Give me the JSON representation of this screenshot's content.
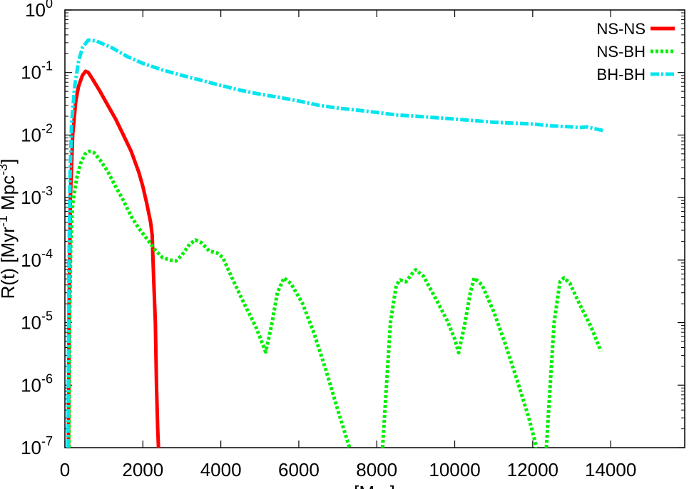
{
  "chart_data": {
    "type": "line",
    "title": "",
    "xlabel": "[Myr]",
    "ylabel": "R(t) [Myr-1 Mpc-3]",
    "ylabel_parts": {
      "base": "R(t) [Myr",
      "sup1": "-1",
      "mid": " Mpc",
      "sup2": "-3",
      "end": "]"
    },
    "x_scale": "linear",
    "y_scale": "log",
    "xlim": [
      0,
      15900
    ],
    "ylim": [
      1e-07,
      1
    ],
    "x_ticks": [
      0,
      2000,
      4000,
      6000,
      8000,
      10000,
      12000,
      14000
    ],
    "x_tick_labels": [
      "0",
      "2000",
      "4000",
      "6000",
      "8000",
      "10000",
      "12000",
      "14000"
    ],
    "y_ticks": [
      1e-07,
      1e-06,
      1e-05,
      0.0001,
      0.001,
      0.01,
      0.1,
      1
    ],
    "y_tick_labels": [
      {
        "base": "10",
        "exp": "-7"
      },
      {
        "base": "10",
        "exp": "-6"
      },
      {
        "base": "10",
        "exp": "-5"
      },
      {
        "base": "10",
        "exp": "-4"
      },
      {
        "base": "10",
        "exp": "-3"
      },
      {
        "base": "10",
        "exp": "-2"
      },
      {
        "base": "10",
        "exp": "-1"
      },
      {
        "base": "10",
        "exp": "0"
      }
    ],
    "grid": false,
    "legend_position": "top-right",
    "series": [
      {
        "name": "NS-NS",
        "color": "#ff0000",
        "dash": "solid",
        "points": [
          [
            90,
            1e-07
          ],
          [
            110,
            2e-05
          ],
          [
            140,
            0.001
          ],
          [
            200,
            0.01
          ],
          [
            280,
            0.035
          ],
          [
            350,
            0.06
          ],
          [
            450,
            0.09
          ],
          [
            530,
            0.105
          ],
          [
            600,
            0.1
          ],
          [
            700,
            0.08
          ],
          [
            900,
            0.05
          ],
          [
            1100,
            0.03
          ],
          [
            1300,
            0.018
          ],
          [
            1500,
            0.01
          ],
          [
            1700,
            0.0055
          ],
          [
            1900,
            0.0025
          ],
          [
            2000,
            0.0015
          ],
          [
            2100,
            0.0008
          ],
          [
            2200,
            0.0004
          ],
          [
            2240,
            0.00025
          ],
          [
            2260,
            0.0001
          ],
          [
            2290,
            3e-05
          ],
          [
            2320,
            1e-05
          ],
          [
            2350,
            1e-06
          ],
          [
            2380,
            2e-07
          ],
          [
            2400,
            1e-07
          ]
        ]
      },
      {
        "name": "NS-BH",
        "color": "#00ee00",
        "dash": "dotted",
        "segments": [
          [
            [
              100,
              1e-07
            ],
            [
              120,
              1e-05
            ],
            [
              150,
              0.0002
            ],
            [
              200,
              0.0008
            ],
            [
              300,
              0.002
            ],
            [
              400,
              0.0035
            ],
            [
              520,
              0.005
            ],
            [
              620,
              0.0055
            ],
            [
              750,
              0.0052
            ],
            [
              900,
              0.004
            ],
            [
              1100,
              0.0026
            ],
            [
              1300,
              0.0015
            ],
            [
              1500,
              0.0009
            ],
            [
              1700,
              0.0005
            ],
            [
              1900,
              0.00032
            ],
            [
              2100,
              0.00022
            ],
            [
              2300,
              0.00015
            ],
            [
              2500,
              0.00011
            ],
            [
              2700,
              0.0001
            ],
            [
              2850,
              9.7e-05
            ],
            [
              3000,
              0.00012
            ],
            [
              3200,
              0.00018
            ],
            [
              3350,
              0.00021
            ],
            [
              3500,
              0.00019
            ],
            [
              3700,
              0.00014
            ],
            [
              3900,
              0.00013
            ],
            [
              4050,
              0.00011
            ],
            [
              4300,
              5e-05
            ],
            [
              4600,
              2e-05
            ],
            [
              4900,
              8.5e-06
            ],
            [
              5150,
              3.4e-06
            ],
            [
              5300,
              9e-06
            ],
            [
              5450,
              3e-05
            ],
            [
              5620,
              5.2e-05
            ],
            [
              5800,
              4.2e-05
            ],
            [
              6100,
              2e-05
            ],
            [
              6400,
              6.5e-06
            ],
            [
              6700,
              1.7e-06
            ],
            [
              7000,
              4e-07
            ],
            [
              7200,
              1.6e-07
            ],
            [
              7300,
              1e-07
            ]
          ],
          [
            [
              8150,
              1e-07
            ],
            [
              8250,
              1e-06
            ],
            [
              8350,
              1e-05
            ],
            [
              8500,
              4e-05
            ],
            [
              8600,
              4.8e-05
            ],
            [
              8750,
              4.5e-05
            ],
            [
              8900,
              6e-05
            ],
            [
              9000,
              7e-05
            ],
            [
              9200,
              5.5e-05
            ],
            [
              9500,
              2.5e-05
            ],
            [
              9800,
              1.1e-05
            ],
            [
              10000,
              5.5e-06
            ],
            [
              10100,
              3.3e-06
            ],
            [
              10250,
              9e-06
            ],
            [
              10400,
              3e-05
            ],
            [
              10500,
              5.2e-05
            ],
            [
              10700,
              4e-05
            ],
            [
              11000,
              1.5e-05
            ],
            [
              11300,
              4.5e-06
            ],
            [
              11600,
              1.2e-06
            ],
            [
              11900,
              3e-07
            ],
            [
              12100,
              1e-07
            ]
          ],
          [
            [
              12350,
              1e-07
            ],
            [
              12450,
              1e-06
            ],
            [
              12550,
              1e-05
            ],
            [
              12700,
              4.5e-05
            ],
            [
              12800,
              5.2e-05
            ],
            [
              12950,
              4.3e-05
            ],
            [
              13200,
              2e-05
            ],
            [
              13500,
              8.5e-06
            ],
            [
              13750,
              3.5e-06
            ]
          ]
        ]
      },
      {
        "name": "BH-BH",
        "color": "#00e5ee",
        "dash": "dash-dot",
        "points": [
          [
            80,
            1e-07
          ],
          [
            100,
            5e-05
          ],
          [
            130,
            0.002
          ],
          [
            170,
            0.015
          ],
          [
            250,
            0.06
          ],
          [
            350,
            0.15
          ],
          [
            450,
            0.25
          ],
          [
            600,
            0.33
          ],
          [
            800,
            0.32
          ],
          [
            1200,
            0.25
          ],
          [
            1600,
            0.18
          ],
          [
            2000,
            0.14
          ],
          [
            2500,
            0.11
          ],
          [
            3000,
            0.09
          ],
          [
            3500,
            0.075
          ],
          [
            4000,
            0.062
          ],
          [
            4500,
            0.052
          ],
          [
            5000,
            0.045
          ],
          [
            5500,
            0.04
          ],
          [
            6000,
            0.035
          ],
          [
            6500,
            0.03
          ],
          [
            7000,
            0.027
          ],
          [
            7500,
            0.025
          ],
          [
            8000,
            0.023
          ],
          [
            8500,
            0.021
          ],
          [
            9000,
            0.02
          ],
          [
            9500,
            0.019
          ],
          [
            10000,
            0.018
          ],
          [
            10500,
            0.017
          ],
          [
            11000,
            0.016
          ],
          [
            11500,
            0.0155
          ],
          [
            12000,
            0.015
          ],
          [
            12500,
            0.014
          ],
          [
            13000,
            0.0135
          ],
          [
            13200,
            0.0132
          ],
          [
            13400,
            0.0135
          ],
          [
            13550,
            0.0128
          ],
          [
            13800,
            0.0118
          ]
        ]
      }
    ]
  }
}
